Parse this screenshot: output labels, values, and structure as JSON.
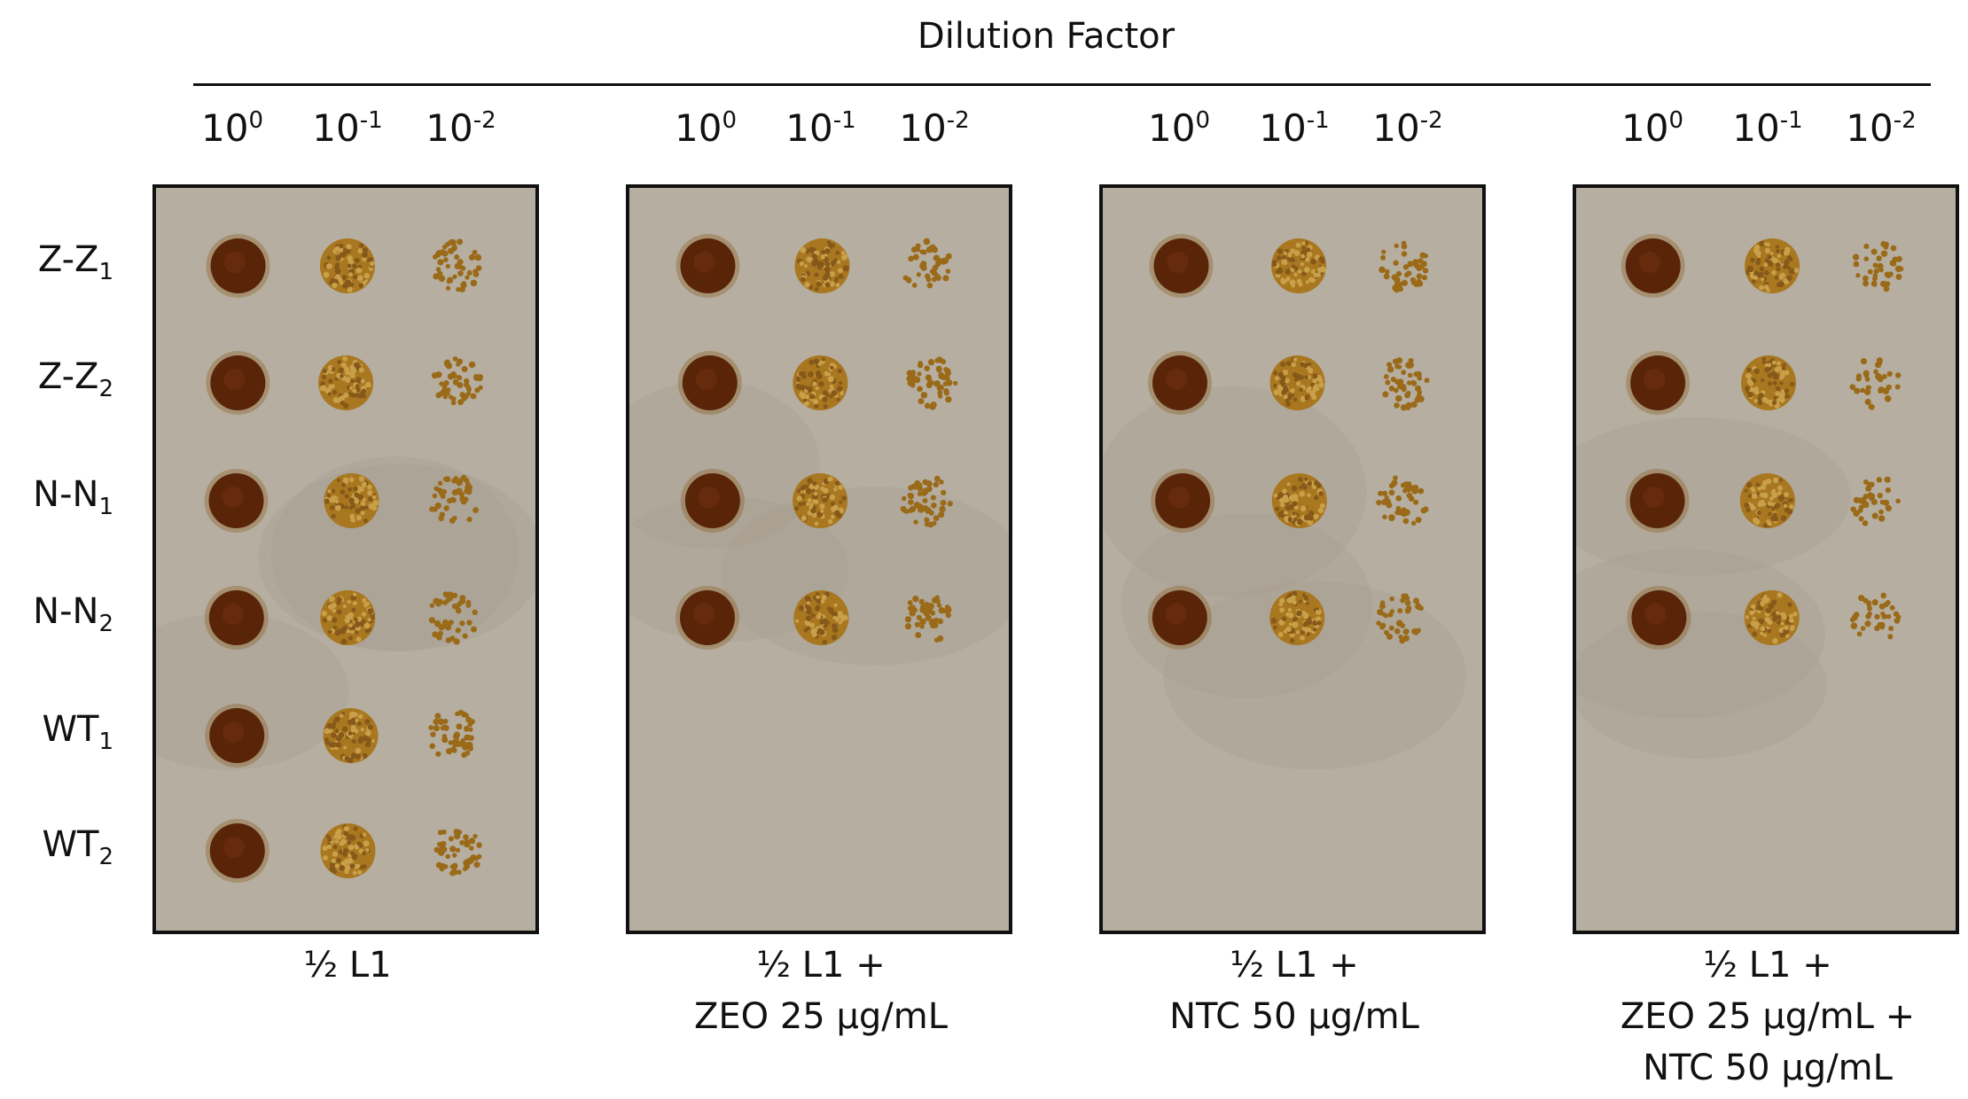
{
  "header": {
    "title": "Dilution Factor"
  },
  "dilutions": [
    {
      "base": "10",
      "exp": "0"
    },
    {
      "base": "10",
      "exp": "-1"
    },
    {
      "base": "10",
      "exp": "-2"
    }
  ],
  "strains": [
    {
      "name": "Z-Z",
      "sub": "1"
    },
    {
      "name": "Z-Z",
      "sub": "2"
    },
    {
      "name": "N-N",
      "sub": "1"
    },
    {
      "name": "N-N",
      "sub": "2"
    },
    {
      "name": "WT",
      "sub": "1"
    },
    {
      "name": "WT",
      "sub": "2"
    }
  ],
  "plates": [
    {
      "condition_lines": [
        "½ L1"
      ],
      "rows_spotted": 6
    },
    {
      "condition_lines": [
        "½ L1 +",
        "ZEO 25 µg/mL"
      ],
      "rows_spotted": 4
    },
    {
      "condition_lines": [
        "½ L1 +",
        "NTC 50 µg/mL"
      ],
      "rows_spotted": 4
    },
    {
      "condition_lines": [
        "½ L1 +",
        "ZEO 25 µg/mL +",
        "NTC 50 µg/mL"
      ],
      "rows_spotted": 4
    }
  ],
  "colors": {
    "agar": "#b6aea0",
    "dense_spot": "#5a2408",
    "mid_spot": "#a8771f",
    "colony": "#9a6a18",
    "border": "#111111"
  }
}
